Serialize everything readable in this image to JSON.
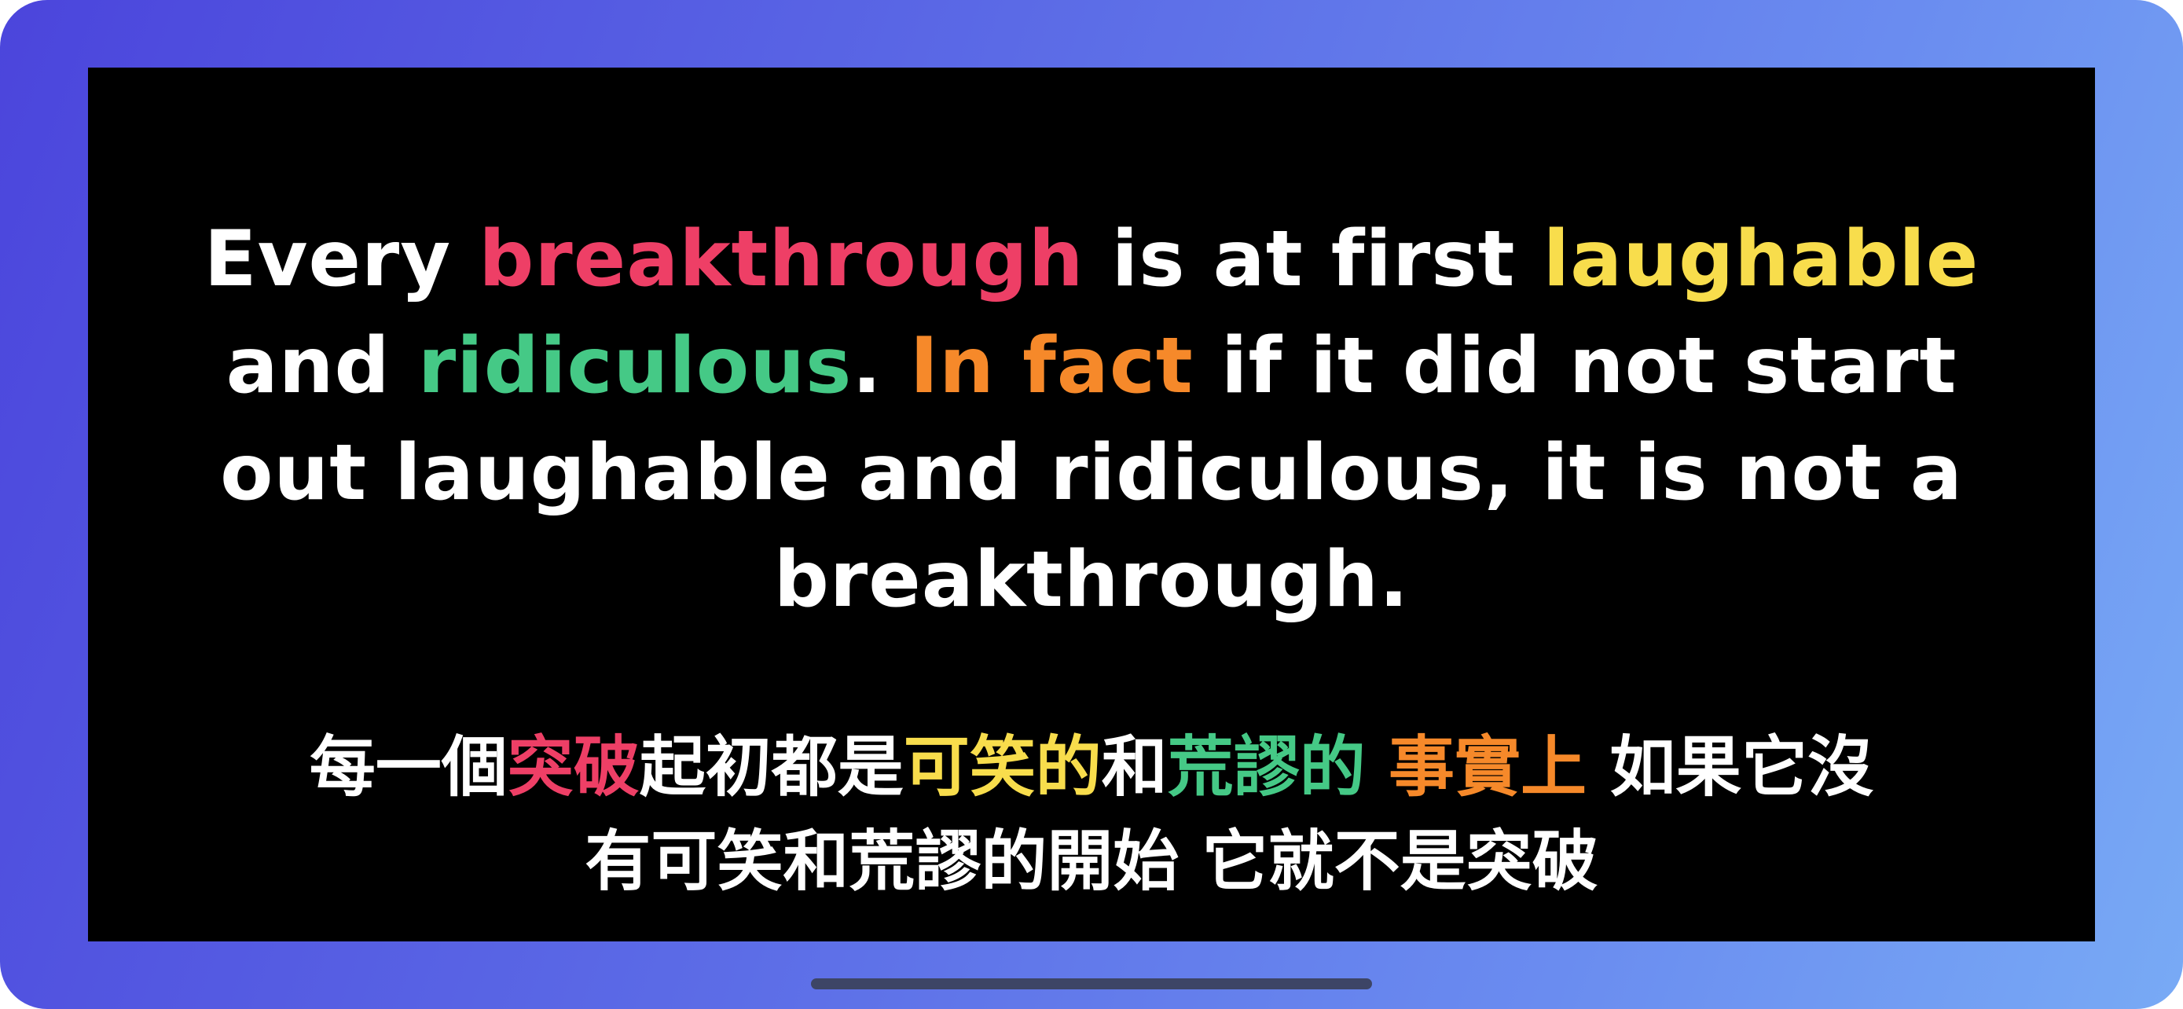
{
  "english_quote": {
    "line1": [
      "Every ",
      "breakthrough",
      " is at first ",
      "laughable"
    ],
    "line2": [
      "and ",
      "ridiculous",
      ". ",
      "In fact",
      " if it did not start"
    ],
    "line3": "out laughable and ridiculous, it is not a",
    "line4": "breakthrough."
  },
  "chinese_quote": {
    "line1": [
      "每一個",
      "突破",
      "起初都是",
      "可笑的",
      "和",
      "荒謬的",
      " ",
      "事實上",
      " 如果它沒"
    ],
    "line2": "有可笑和荒謬的開始 它就不是突破"
  },
  "colors": {
    "frame_gradient": [
      "#4b45dc",
      "#78aaf5"
    ],
    "screen_background": "#000000",
    "text": "#ffffff",
    "highlight_red": "#ee3f66",
    "highlight_yellow": "#f8dd4c",
    "highlight_green": "#45c986",
    "highlight_orange": "#f6892a"
  }
}
